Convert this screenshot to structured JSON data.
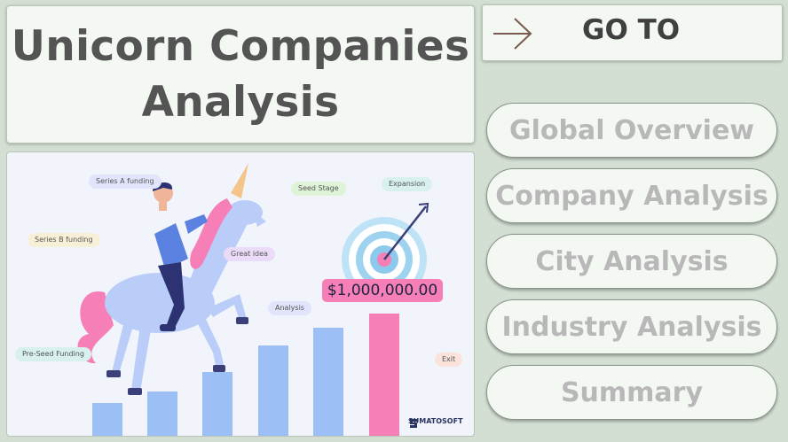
{
  "title": {
    "line1": "Unicorn Companies",
    "line2": "Analysis"
  },
  "goto": {
    "label": "GO TO",
    "icon": "arrow-right-icon"
  },
  "nav": [
    {
      "label": "Global Overview"
    },
    {
      "label": "Company Analysis"
    },
    {
      "label": "City Analysis"
    },
    {
      "label": "Industry Analysis"
    },
    {
      "label": "Summary"
    }
  ],
  "illustration": {
    "tags": {
      "series_a": "Series A funding",
      "seed": "Seed Stage",
      "expansion": "Expansion",
      "series_b": "Series B funding",
      "great_idea": "Great idea",
      "analysis": "Analysis",
      "pre_seed": "Pre-Seed Funding",
      "exit": "Exit"
    },
    "money": "$1,000,000.00",
    "brand": "SUMATOSOFT"
  },
  "colors": {
    "background": "#d3dfd3",
    "card": "#f4f8f3",
    "title_text": "#545454",
    "nav_text": "#b8b8b8",
    "bar_blue": "#9cbff5",
    "bar_pink": "#f57fb6"
  }
}
